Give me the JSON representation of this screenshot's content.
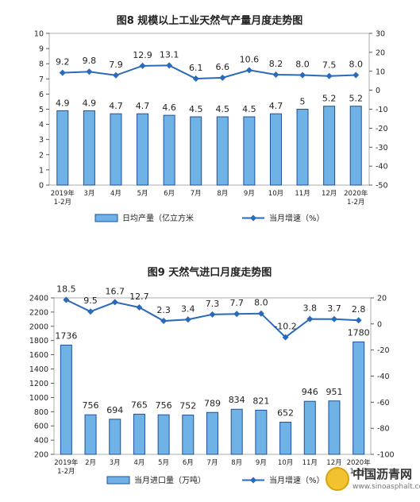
{
  "colors": {
    "bar_fill": "#6fb3e6",
    "bar_stroke": "#1f4f9c",
    "line": "#2a6ab8",
    "axis": "#333333",
    "grid": "#d9d9d9"
  },
  "watermark": {
    "main": "中国沥青网",
    "sub": "www.sinoasphalt.com"
  },
  "chart_data": [
    {
      "type": "bar",
      "title": "图8  规模以上工业天然气产量月度走势图",
      "categories": [
        "2019年\n1-2月",
        "3月",
        "4月",
        "5月",
        "6月",
        "7月",
        "8月",
        "9月",
        "10月",
        "11月",
        "12月",
        "2020年\n1-2月"
      ],
      "series": [
        {
          "name": "日均产量（亿立方米",
          "type": "bar",
          "axis": "left",
          "values": [
            4.9,
            4.9,
            4.7,
            4.7,
            4.6,
            4.5,
            4.5,
            4.5,
            4.7,
            5.0,
            5.2,
            5.2
          ]
        },
        {
          "name": "当月增速（%）",
          "type": "line",
          "axis": "right",
          "values": [
            9.2,
            9.8,
            7.9,
            12.9,
            13.1,
            6.1,
            6.6,
            10.6,
            8.2,
            8.0,
            7.5,
            8.0
          ]
        }
      ],
      "ylim_left": [
        0,
        10
      ],
      "yticks_left": [
        0,
        1,
        2,
        3,
        4,
        5,
        6,
        7,
        8,
        9,
        10
      ],
      "ylim_right": [
        -50,
        30
      ],
      "yticks_right": [
        -50,
        -40,
        -30,
        -20,
        -10,
        0,
        10,
        20,
        30
      ],
      "grid": false,
      "legend": "bottom"
    },
    {
      "type": "bar",
      "title": "图9  天然气进口月度走势图",
      "categories": [
        "2019年\n1-2月",
        "2月",
        "3月",
        "4月",
        "5月",
        "6月",
        "7月",
        "8月",
        "9月",
        "10月",
        "11月",
        "12月",
        "2020年\n1-2月"
      ],
      "series": [
        {
          "name": "当月进口量（万吨）",
          "type": "bar",
          "axis": "left",
          "values": [
            1736,
            756,
            694,
            765,
            756,
            752,
            789,
            834,
            821,
            652,
            946,
            951,
            1780
          ]
        },
        {
          "name": "当月增速（%）",
          "type": "line",
          "axis": "right",
          "values": [
            18.5,
            9.5,
            16.7,
            12.7,
            2.3,
            3.4,
            7.3,
            7.7,
            8.0,
            -10.2,
            3.8,
            3.7,
            2.8
          ]
        }
      ],
      "ylim_left": [
        200,
        2400
      ],
      "yticks_left": [
        200,
        400,
        600,
        800,
        1000,
        1200,
        1400,
        1600,
        1800,
        2000,
        2200,
        2400
      ],
      "ylim_right": [
        -100,
        20
      ],
      "yticks_right": [
        -100,
        -80,
        -60,
        -40,
        -20,
        0,
        20
      ],
      "grid": false,
      "legend": "bottom"
    }
  ]
}
